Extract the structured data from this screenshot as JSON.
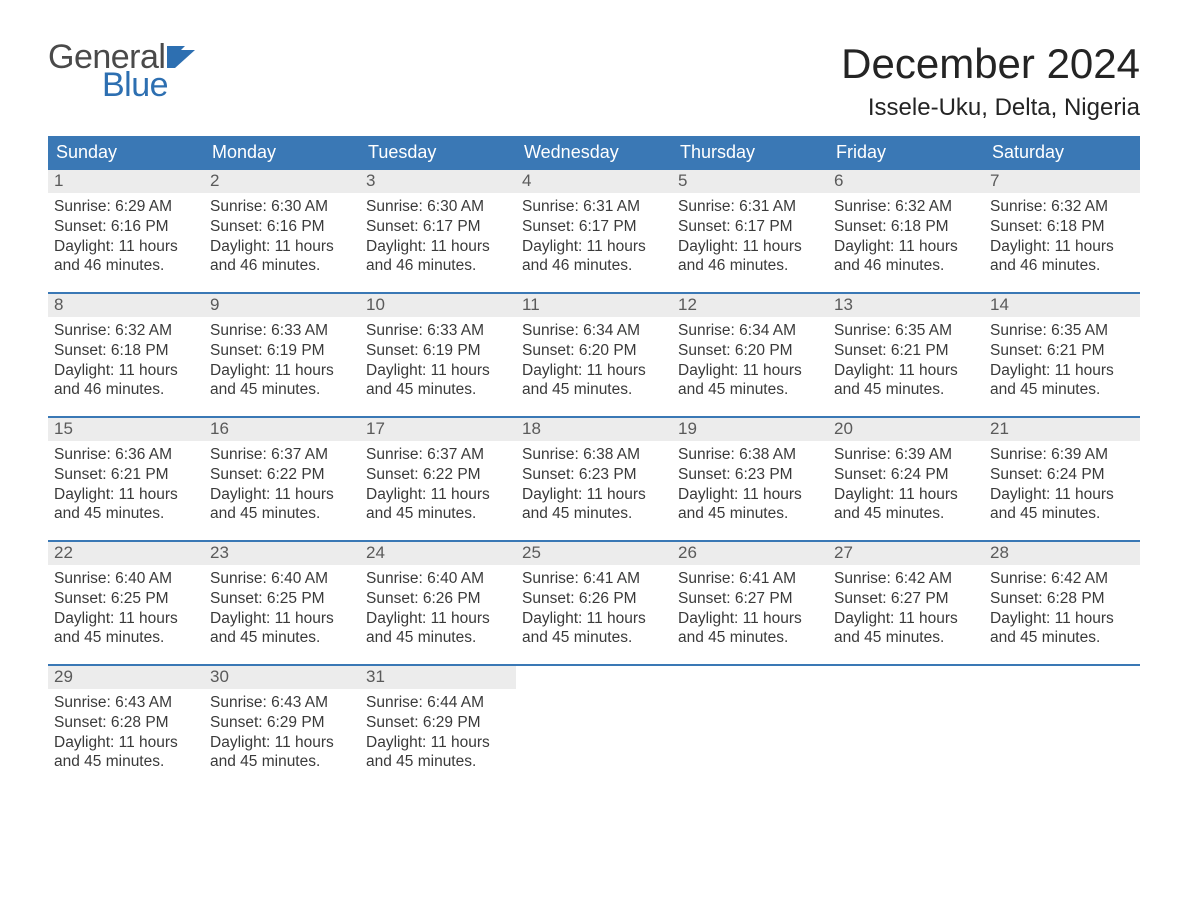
{
  "brand": {
    "top": "General",
    "bottom": "Blue",
    "top_color": "#4a4a4a",
    "bottom_color": "#2d6fb1",
    "flag_color": "#2d6fb1"
  },
  "title": "December 2024",
  "location": "Issele-Uku, Delta, Nigeria",
  "colors": {
    "header_bg": "#3a78b5",
    "header_text": "#ffffff",
    "week_border": "#3a78b5",
    "daynum_bg": "#ececec",
    "daynum_text": "#5a5a5a",
    "body_text": "#3a3a3a",
    "page_bg": "#ffffff"
  },
  "typography": {
    "title_fontsize": 42,
    "location_fontsize": 24,
    "dayheader_fontsize": 18,
    "daynum_fontsize": 17,
    "cell_fontsize": 15.5,
    "font_family": "Arial"
  },
  "day_headers": [
    "Sunday",
    "Monday",
    "Tuesday",
    "Wednesday",
    "Thursday",
    "Friday",
    "Saturday"
  ],
  "weeks": [
    [
      {
        "n": "1",
        "sunrise": "6:29 AM",
        "sunset": "6:16 PM",
        "dl1": "Daylight: 11 hours",
        "dl2": "and 46 minutes."
      },
      {
        "n": "2",
        "sunrise": "6:30 AM",
        "sunset": "6:16 PM",
        "dl1": "Daylight: 11 hours",
        "dl2": "and 46 minutes."
      },
      {
        "n": "3",
        "sunrise": "6:30 AM",
        "sunset": "6:17 PM",
        "dl1": "Daylight: 11 hours",
        "dl2": "and 46 minutes."
      },
      {
        "n": "4",
        "sunrise": "6:31 AM",
        "sunset": "6:17 PM",
        "dl1": "Daylight: 11 hours",
        "dl2": "and 46 minutes."
      },
      {
        "n": "5",
        "sunrise": "6:31 AM",
        "sunset": "6:17 PM",
        "dl1": "Daylight: 11 hours",
        "dl2": "and 46 minutes."
      },
      {
        "n": "6",
        "sunrise": "6:32 AM",
        "sunset": "6:18 PM",
        "dl1": "Daylight: 11 hours",
        "dl2": "and 46 minutes."
      },
      {
        "n": "7",
        "sunrise": "6:32 AM",
        "sunset": "6:18 PM",
        "dl1": "Daylight: 11 hours",
        "dl2": "and 46 minutes."
      }
    ],
    [
      {
        "n": "8",
        "sunrise": "6:32 AM",
        "sunset": "6:18 PM",
        "dl1": "Daylight: 11 hours",
        "dl2": "and 46 minutes."
      },
      {
        "n": "9",
        "sunrise": "6:33 AM",
        "sunset": "6:19 PM",
        "dl1": "Daylight: 11 hours",
        "dl2": "and 45 minutes."
      },
      {
        "n": "10",
        "sunrise": "6:33 AM",
        "sunset": "6:19 PM",
        "dl1": "Daylight: 11 hours",
        "dl2": "and 45 minutes."
      },
      {
        "n": "11",
        "sunrise": "6:34 AM",
        "sunset": "6:20 PM",
        "dl1": "Daylight: 11 hours",
        "dl2": "and 45 minutes."
      },
      {
        "n": "12",
        "sunrise": "6:34 AM",
        "sunset": "6:20 PM",
        "dl1": "Daylight: 11 hours",
        "dl2": "and 45 minutes."
      },
      {
        "n": "13",
        "sunrise": "6:35 AM",
        "sunset": "6:21 PM",
        "dl1": "Daylight: 11 hours",
        "dl2": "and 45 minutes."
      },
      {
        "n": "14",
        "sunrise": "6:35 AM",
        "sunset": "6:21 PM",
        "dl1": "Daylight: 11 hours",
        "dl2": "and 45 minutes."
      }
    ],
    [
      {
        "n": "15",
        "sunrise": "6:36 AM",
        "sunset": "6:21 PM",
        "dl1": "Daylight: 11 hours",
        "dl2": "and 45 minutes."
      },
      {
        "n": "16",
        "sunrise": "6:37 AM",
        "sunset": "6:22 PM",
        "dl1": "Daylight: 11 hours",
        "dl2": "and 45 minutes."
      },
      {
        "n": "17",
        "sunrise": "6:37 AM",
        "sunset": "6:22 PM",
        "dl1": "Daylight: 11 hours",
        "dl2": "and 45 minutes."
      },
      {
        "n": "18",
        "sunrise": "6:38 AM",
        "sunset": "6:23 PM",
        "dl1": "Daylight: 11 hours",
        "dl2": "and 45 minutes."
      },
      {
        "n": "19",
        "sunrise": "6:38 AM",
        "sunset": "6:23 PM",
        "dl1": "Daylight: 11 hours",
        "dl2": "and 45 minutes."
      },
      {
        "n": "20",
        "sunrise": "6:39 AM",
        "sunset": "6:24 PM",
        "dl1": "Daylight: 11 hours",
        "dl2": "and 45 minutes."
      },
      {
        "n": "21",
        "sunrise": "6:39 AM",
        "sunset": "6:24 PM",
        "dl1": "Daylight: 11 hours",
        "dl2": "and 45 minutes."
      }
    ],
    [
      {
        "n": "22",
        "sunrise": "6:40 AM",
        "sunset": "6:25 PM",
        "dl1": "Daylight: 11 hours",
        "dl2": "and 45 minutes."
      },
      {
        "n": "23",
        "sunrise": "6:40 AM",
        "sunset": "6:25 PM",
        "dl1": "Daylight: 11 hours",
        "dl2": "and 45 minutes."
      },
      {
        "n": "24",
        "sunrise": "6:40 AM",
        "sunset": "6:26 PM",
        "dl1": "Daylight: 11 hours",
        "dl2": "and 45 minutes."
      },
      {
        "n": "25",
        "sunrise": "6:41 AM",
        "sunset": "6:26 PM",
        "dl1": "Daylight: 11 hours",
        "dl2": "and 45 minutes."
      },
      {
        "n": "26",
        "sunrise": "6:41 AM",
        "sunset": "6:27 PM",
        "dl1": "Daylight: 11 hours",
        "dl2": "and 45 minutes."
      },
      {
        "n": "27",
        "sunrise": "6:42 AM",
        "sunset": "6:27 PM",
        "dl1": "Daylight: 11 hours",
        "dl2": "and 45 minutes."
      },
      {
        "n": "28",
        "sunrise": "6:42 AM",
        "sunset": "6:28 PM",
        "dl1": "Daylight: 11 hours",
        "dl2": "and 45 minutes."
      }
    ],
    [
      {
        "n": "29",
        "sunrise": "6:43 AM",
        "sunset": "6:28 PM",
        "dl1": "Daylight: 11 hours",
        "dl2": "and 45 minutes."
      },
      {
        "n": "30",
        "sunrise": "6:43 AM",
        "sunset": "6:29 PM",
        "dl1": "Daylight: 11 hours",
        "dl2": "and 45 minutes."
      },
      {
        "n": "31",
        "sunrise": "6:44 AM",
        "sunset": "6:29 PM",
        "dl1": "Daylight: 11 hours",
        "dl2": "and 45 minutes."
      },
      null,
      null,
      null,
      null
    ]
  ],
  "labels": {
    "sunrise_prefix": "Sunrise: ",
    "sunset_prefix": "Sunset: "
  }
}
